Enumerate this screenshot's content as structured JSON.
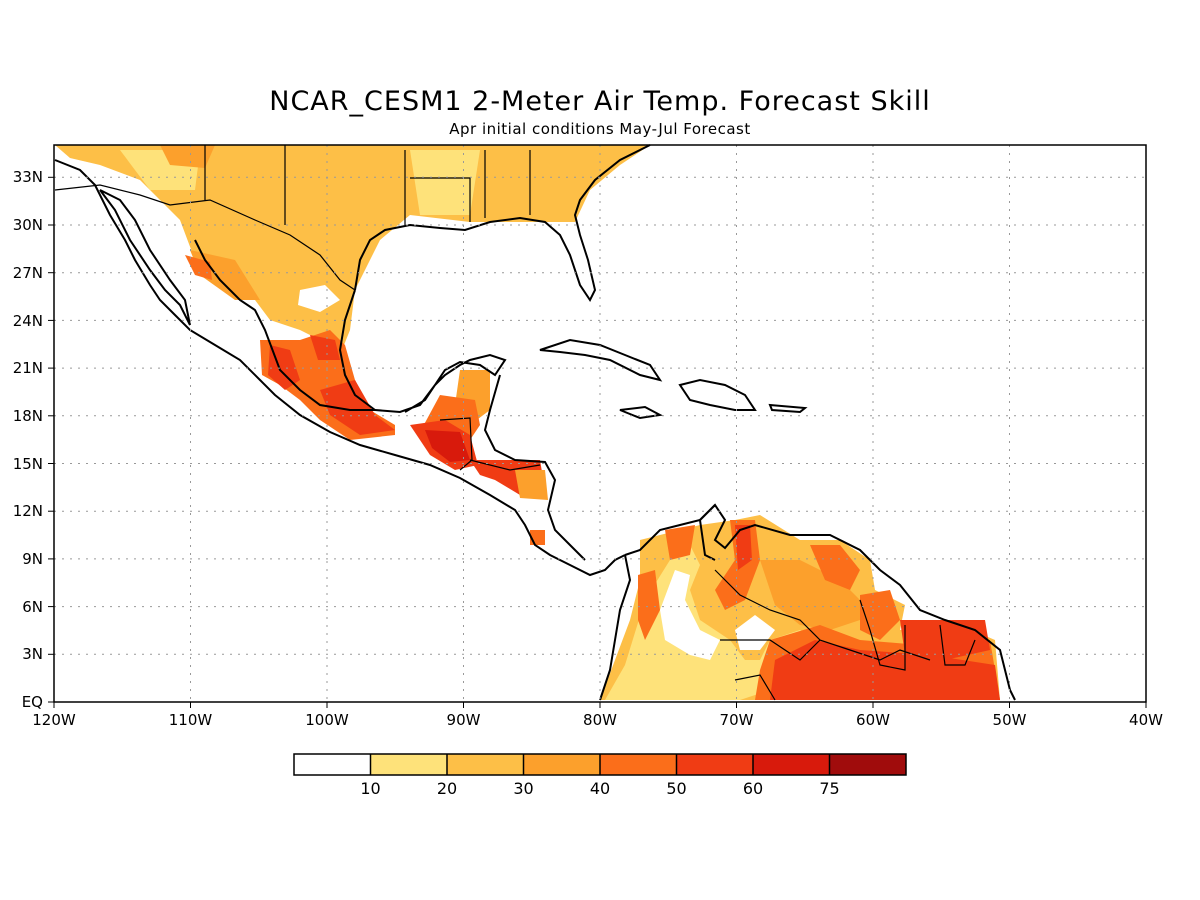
{
  "title": "NCAR_CESM1 2-Meter Air Temp. Forecast Skill",
  "subtitle": "Apr initial conditions  May-Jul Forecast",
  "map": {
    "lon_labels": [
      "120W",
      "110W",
      "100W",
      "90W",
      "80W",
      "70W",
      "60W",
      "50W",
      "40W"
    ],
    "lat_labels": [
      "EQ",
      "3N",
      "6N",
      "9N",
      "12N",
      "15N",
      "18N",
      "21N",
      "24N",
      "27N",
      "30N",
      "33N"
    ]
  },
  "colorbar": {
    "colors": [
      "#ffffff",
      "#fee27a",
      "#fdbf47",
      "#fca02c",
      "#fb6e1a",
      "#f03c14",
      "#d81a0c",
      "#a00c0c"
    ],
    "labels": [
      "10",
      "20",
      "30",
      "40",
      "50",
      "60",
      "75"
    ]
  }
}
